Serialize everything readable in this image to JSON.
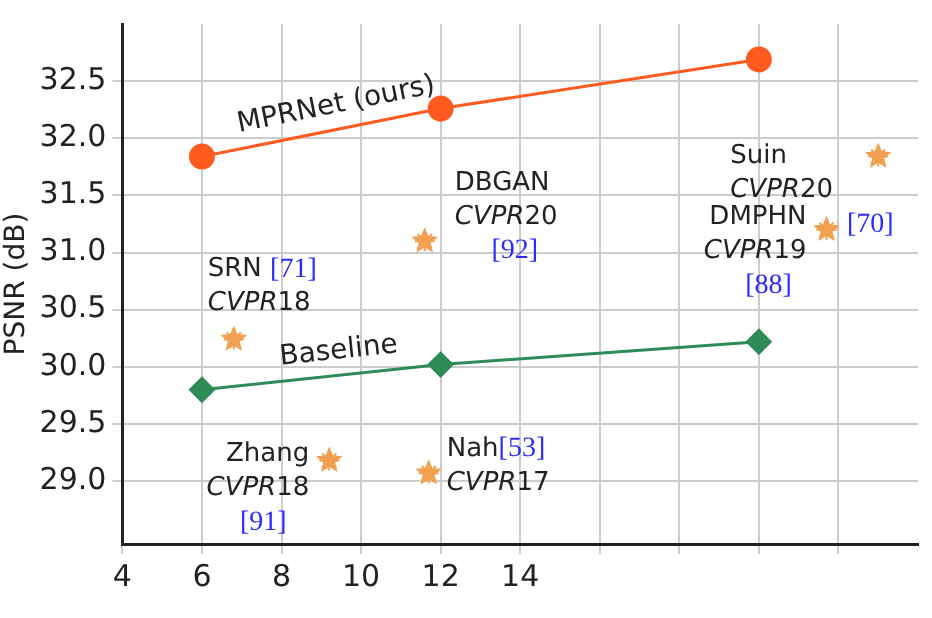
{
  "chart_data": {
    "type": "line",
    "ylabel": "PSNR (dB)",
    "xlim": [
      4,
      24
    ],
    "xticks": [
      4,
      6,
      8,
      10,
      12,
      14,
      {
        "value": 16,
        "label": null
      },
      {
        "value": 18,
        "label": null
      },
      {
        "value": 20,
        "label": null
      },
      {
        "value": 22,
        "label": null
      }
    ],
    "ylim": [
      28.45,
      33.0
    ],
    "yticks": [
      {
        "value": 29,
        "label": "29.0"
      },
      29.5,
      {
        "value": 30,
        "label": "30.0"
      },
      30.5,
      {
        "value": 31,
        "label": "31.0"
      },
      31.5,
      {
        "value": 32,
        "label": "32.0"
      },
      32.5
    ],
    "grid": true,
    "legend": false,
    "series": [
      {
        "name": "MPRNet (ours)",
        "type": "line",
        "marker": "circle",
        "color": "#ff5a1f",
        "x": [
          6,
          12,
          20
        ],
        "values": [
          31.84,
          32.26,
          32.69
        ]
      },
      {
        "name": "Baseline",
        "type": "line",
        "marker": "diamond",
        "color": "#2e8b57",
        "x": [
          6,
          12,
          20
        ],
        "values": [
          29.8,
          30.02,
          30.22
        ]
      },
      {
        "type": "scatter",
        "marker": "star",
        "color": "#f0a050",
        "x": [
          6.8,
          9.2,
          11.6,
          11.7,
          21.7,
          23.0
        ],
        "values": [
          30.24,
          29.18,
          31.1,
          29.07,
          31.2,
          31.84
        ]
      }
    ],
    "annotations": [
      {
        "text": "SRN [71]\nCVPR18",
        "x": 6.8,
        "y": 30.24
      },
      {
        "text": "Zhang\nCVPR18\n[91]",
        "x": 9.2,
        "y": 29.18
      },
      {
        "text": "DBGAN\nCVPR20\n[92]",
        "x": 11.6,
        "y": 31.1
      },
      {
        "text": "Nah[53]\nCVPR17",
        "x": 11.7,
        "y": 29.07
      },
      {
        "text": "DMPHN\nCVPR19\n[88]",
        "x": 21.7,
        "y": 31.2
      },
      {
        "text": "Suin\nCVPR20\n[70]",
        "x": 23.0,
        "y": 31.84
      }
    ]
  }
}
